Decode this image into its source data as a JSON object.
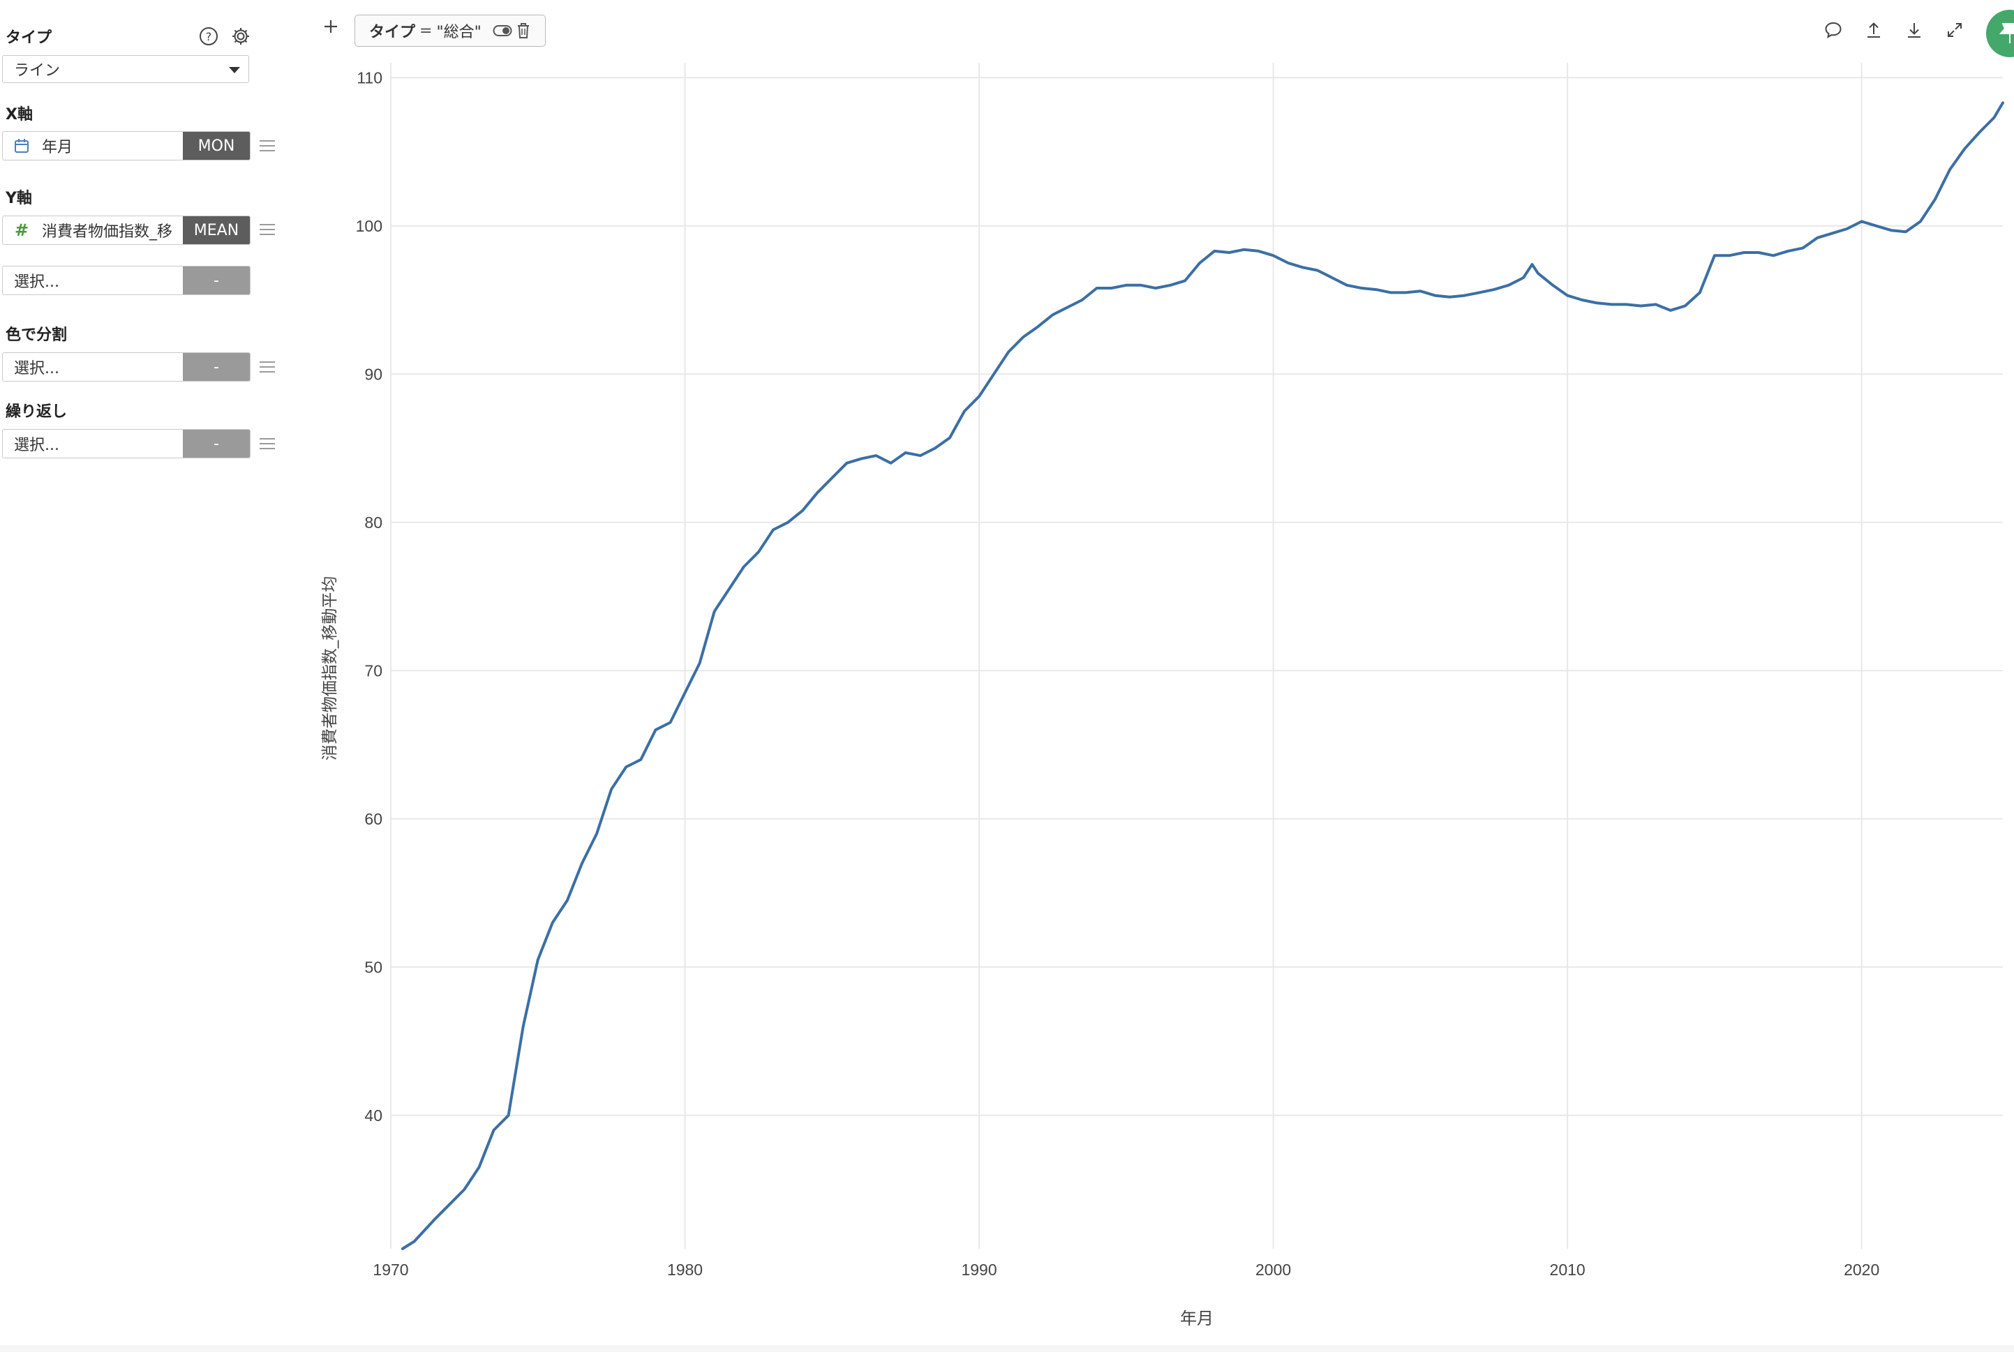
{
  "sidebar": {
    "type": {
      "label": "タイプ",
      "value": "ライン",
      "help_icon": "help-circle-icon",
      "settings_icon": "gear-icon"
    },
    "x_axis": {
      "label": "X軸",
      "field": "年月",
      "field_icon": "calendar-icon",
      "agg": "MON"
    },
    "y_axis": {
      "label": "Y軸",
      "field": "消費者物価指数_移",
      "field_icon": "hash-icon",
      "agg": "MEAN",
      "extra_placeholder": "選択...",
      "extra_agg": "-"
    },
    "color": {
      "label": "色で分割",
      "placeholder": "選択...",
      "agg": "-"
    },
    "repeat": {
      "label": "繰り返し",
      "placeholder": "選択...",
      "agg": "-"
    }
  },
  "topbar": {
    "add_icon": "plus-icon",
    "filter": {
      "key": "タイプ",
      "op": "=",
      "value": "\"総合\"",
      "toggle_icon": "toggle-icon",
      "delete_icon": "trash-icon"
    },
    "icons": [
      "comment-icon",
      "upload-icon",
      "download-icon",
      "expand-icon",
      "pin-icon"
    ]
  },
  "colors": {
    "line": "#3b6fa5",
    "grid": "#e8e8e8",
    "pin": "#44a86b",
    "accent_hash": "#4a9a3a",
    "accent_calendar": "#4a7fc0"
  },
  "chart_data": {
    "type": "line",
    "xlabel": "年月",
    "ylabel": "消費者物価指数_移動平均",
    "xlim": [
      1970,
      2024.8
    ],
    "ylim": [
      31,
      111
    ],
    "x_ticks": [
      1970,
      1980,
      1990,
      2000,
      2010,
      2020
    ],
    "y_ticks": [
      40,
      50,
      60,
      70,
      80,
      90,
      100,
      110
    ],
    "grid": true,
    "series": [
      {
        "x": [
          1970.4,
          1970.8,
          1971.5,
          1972.0,
          1972.5,
          1973.0,
          1973.5,
          1974.0,
          1974.5,
          1975.0,
          1975.5,
          1976.0,
          1976.5,
          1977.0,
          1977.5,
          1978.0,
          1978.5,
          1979.0,
          1979.5,
          1980.0,
          1980.5,
          1981.0,
          1981.5,
          1982.0,
          1982.5,
          1983.0,
          1983.5,
          1984.0,
          1984.5,
          1985.0,
          1985.5,
          1986.0,
          1986.5,
          1987.0,
          1987.5,
          1988.0,
          1988.5,
          1989.0,
          1989.5,
          1990.0,
          1990.5,
          1991.0,
          1991.5,
          1992.0,
          1992.5,
          1993.0,
          1993.5,
          1994.0,
          1994.5,
          1995.0,
          1995.5,
          1996.0,
          1996.5,
          1997.0,
          1997.5,
          1998.0,
          1998.5,
          1999.0,
          1999.5,
          2000.0,
          2000.5,
          2001.0,
          2001.5,
          2002.0,
          2002.5,
          2003.0,
          2003.5,
          2004.0,
          2004.5,
          2005.0,
          2005.5,
          2006.0,
          2006.5,
          2007.0,
          2007.5,
          2008.0,
          2008.5,
          2008.8,
          2009.0,
          2009.5,
          2010.0,
          2010.5,
          2011.0,
          2011.5,
          2012.0,
          2012.5,
          2013.0,
          2013.5,
          2014.0,
          2014.5,
          2015.0,
          2015.5,
          2016.0,
          2016.5,
          2017.0,
          2017.5,
          2018.0,
          2018.5,
          2019.0,
          2019.5,
          2020.0,
          2020.5,
          2021.0,
          2021.5,
          2022.0,
          2022.5,
          2023.0,
          2023.5,
          2024.0,
          2024.5,
          2024.8
        ],
        "y": [
          31.0,
          31.5,
          33.0,
          34.0,
          35.0,
          36.5,
          39.0,
          40.0,
          46.0,
          50.5,
          53.0,
          54.5,
          57.0,
          59.0,
          62.0,
          63.5,
          64.0,
          66.0,
          66.5,
          68.5,
          70.5,
          74.0,
          75.5,
          77.0,
          78.0,
          79.5,
          80.0,
          80.8,
          82.0,
          83.0,
          84.0,
          84.3,
          84.5,
          84.0,
          84.7,
          84.5,
          85.0,
          85.7,
          87.5,
          88.5,
          90.0,
          91.5,
          92.5,
          93.2,
          94.0,
          94.5,
          95.0,
          95.8,
          95.8,
          96.0,
          96.0,
          95.8,
          96.0,
          96.3,
          97.5,
          98.3,
          98.2,
          98.4,
          98.3,
          98.0,
          97.5,
          97.2,
          97.0,
          96.5,
          96.0,
          95.8,
          95.7,
          95.5,
          95.5,
          95.6,
          95.3,
          95.2,
          95.3,
          95.5,
          95.7,
          96.0,
          96.5,
          97.4,
          96.8,
          96.0,
          95.3,
          95.0,
          94.8,
          94.7,
          94.7,
          94.6,
          94.7,
          94.3,
          94.6,
          95.5,
          98.0,
          98.0,
          98.2,
          98.2,
          98.0,
          98.3,
          98.5,
          99.2,
          99.5,
          99.8,
          100.3,
          100.0,
          99.7,
          99.6,
          100.3,
          101.8,
          103.8,
          105.2,
          106.3,
          107.3,
          108.3
        ]
      }
    ]
  }
}
